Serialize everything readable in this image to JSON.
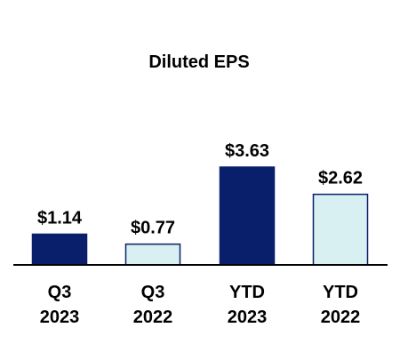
{
  "chart_data": {
    "type": "bar",
    "title": "Diluted EPS",
    "xlabel": "",
    "ylabel": "",
    "ylim": [
      0,
      3.63
    ],
    "grid": false,
    "legend": "none",
    "categories": [
      [
        "Q3",
        "2023"
      ],
      [
        "Q3",
        "2022"
      ],
      [
        "YTD",
        "2023"
      ],
      [
        "YTD",
        "2022"
      ]
    ],
    "values": [
      1.14,
      0.77,
      3.63,
      2.62
    ],
    "value_labels": [
      "$1.14",
      "$0.77",
      "$3.63",
      "$2.62"
    ],
    "bar_colors": [
      "#0a1f6b",
      "#d9f0f3",
      "#0a1f6b",
      "#d9f0f3"
    ],
    "bar_outline": "#0a1f6b",
    "axis_color": "#000000"
  }
}
